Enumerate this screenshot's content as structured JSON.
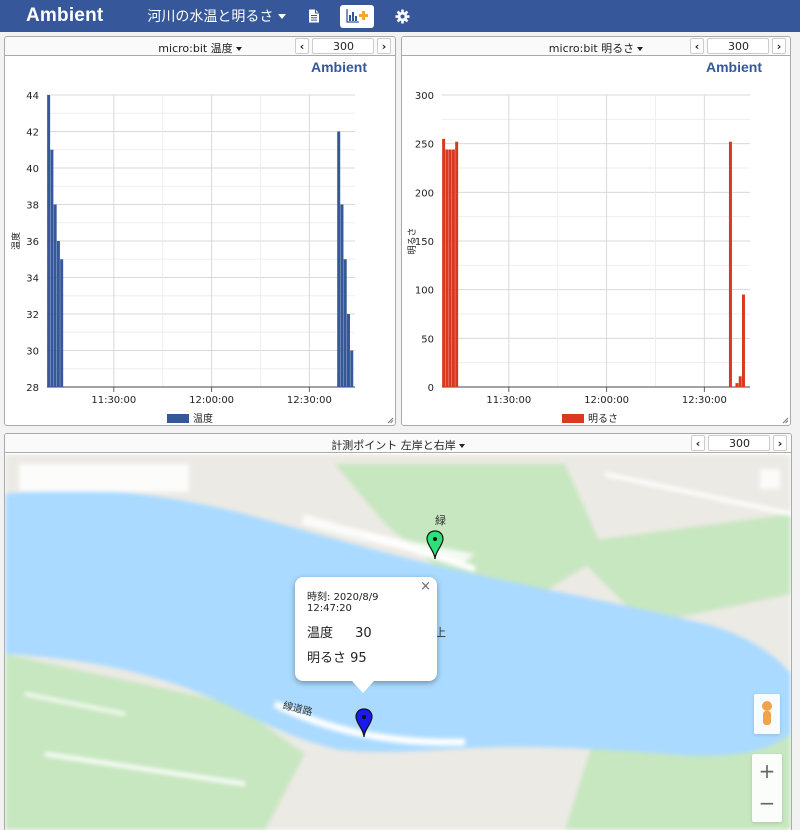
{
  "navbar": {
    "brand": "Ambient",
    "channel_title": "河川の水温と明るさ",
    "icons": [
      "document-icon",
      "add-chart-icon",
      "gear-icon"
    ]
  },
  "charts": [
    {
      "panel_title": "micro:bit 温度",
      "points": "300",
      "watermark": "Ambient",
      "color": "#36589a",
      "chart_data": {
        "type": "bar",
        "ylabel": "温度",
        "ylim": [
          28,
          44
        ],
        "yticks": [
          "28",
          "30",
          "32",
          "34",
          "36",
          "38",
          "40",
          "42",
          "44"
        ],
        "xticks": [
          "11:30:00",
          "12:00:00",
          "12:30:00"
        ],
        "legend": "温度",
        "series": [
          {
            "name": "温度",
            "x": [
              "11:10:00",
              "11:11:00",
              "11:12:00",
              "11:13:00",
              "11:14:00",
              "12:39:00",
              "12:40:00",
              "12:41:00",
              "12:42:00",
              "12:43:00"
            ],
            "values": [
              44,
              41,
              38,
              36,
              35,
              42,
              38,
              35,
              32,
              30
            ]
          }
        ]
      }
    },
    {
      "panel_title": "micro:bit 明るさ",
      "points": "300",
      "watermark": "Ambient",
      "color": "#d93a1f",
      "chart_data": {
        "type": "bar",
        "ylabel": "明るさ",
        "ylim": [
          0,
          300
        ],
        "yticks": [
          "0",
          "50",
          "100",
          "150",
          "200",
          "250",
          "300"
        ],
        "xticks": [
          "11:30:00",
          "12:00:00",
          "12:30:00"
        ],
        "legend": "明るさ",
        "series": [
          {
            "name": "明るさ",
            "x": [
              "11:10:00",
              "11:11:00",
              "11:12:00",
              "11:13:00",
              "11:14:00",
              "12:38:00",
              "12:40:00",
              "12:41:00",
              "12:42:00"
            ],
            "values": [
              255,
              244,
              244,
              244,
              252,
              252,
              4,
              11,
              95
            ]
          }
        ]
      }
    }
  ],
  "map": {
    "panel_title": "計測ポイント 左岸と右岸",
    "points": "300",
    "popup": {
      "time_label": "時刻:",
      "time_value": "2020/8/9 12:47:20",
      "rows": [
        {
          "label": "温度",
          "value": "30"
        },
        {
          "label": "明るさ",
          "value": "95"
        }
      ]
    },
    "labels": {
      "road": "線道路",
      "green": "緑",
      "upper": "上"
    },
    "colors": {
      "water": "#aadaff",
      "park": "#c7e7c0",
      "land": "#eceae4",
      "marker_green": "#2ee07a",
      "marker_blue": "#1a1aee"
    }
  }
}
